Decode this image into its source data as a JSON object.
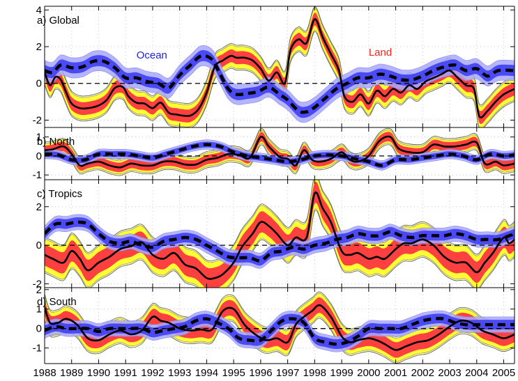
{
  "chart_data": {
    "type": "line",
    "title": "",
    "xlabel": "",
    "ylabel": "",
    "xlim": [
      1988,
      2005.4
    ],
    "x_ticks": [
      1988,
      1989,
      1990,
      1991,
      1992,
      1993,
      1994,
      1995,
      1996,
      1997,
      1998,
      1999,
      2000,
      2001,
      2002,
      2003,
      2004,
      2005
    ],
    "x_tick_labels": [
      "1988",
      "1989",
      "1990",
      "1991",
      "1992",
      "1993",
      "1994",
      "1995",
      "1996",
      "1997",
      "1998",
      "1999",
      "2000",
      "2001",
      "2002",
      "2003",
      "2004",
      "2005"
    ],
    "grid": "dotted",
    "colors": {
      "land_line": "#000000",
      "land_inner_band": "#ff4040",
      "land_outer_band": "#ffff33",
      "land_outermost_band": "#ffffb0",
      "ocean_line": "#000000",
      "ocean_inner_band": "#3f3ff5",
      "ocean_outer_band": "#a8a8ff",
      "ocean_label": "#2020e0",
      "land_label": "#ff2020"
    },
    "annotations": [
      {
        "text": "Ocean",
        "panel": "a",
        "color": "#2020e0",
        "x": 1991.4,
        "y": 1.35
      },
      {
        "text": "Land",
        "panel": "a",
        "color": "#ff2020",
        "x": 2000.0,
        "y": 1.5
      }
    ],
    "panels": [
      {
        "id": "a",
        "title": "a) Global",
        "ylim": [
          -2.4,
          4.2
        ],
        "y_ticks": [
          -2,
          0,
          2,
          4
        ],
        "y_tick_labels": [
          "-2",
          "0",
          "2",
          "4"
        ],
        "series": [
          {
            "name": "Land",
            "style": "solid",
            "band_inner": 0.35,
            "band_outer": 0.6,
            "x": [
              1988,
              1988.2,
              1988.4,
              1988.6,
              1988.8,
              1989,
              1989.3,
              1989.6,
              1990,
              1990.3,
              1990.6,
              1990.9,
              1991.1,
              1991.4,
              1991.7,
              1992,
              1992.3,
              1992.6,
              1992.9,
              1993.1,
              1993.4,
              1993.7,
              1994,
              1994.3,
              1994.6,
              1994.9,
              1995.1,
              1995.4,
              1995.7,
              1996,
              1996.3,
              1996.6,
              1996.9,
              1997.1,
              1997.4,
              1997.7,
              1998,
              1998.3,
              1998.6,
              1998.9,
              1999.1,
              1999.4,
              1999.7,
              2000,
              2000.3,
              2000.6,
              2000.9,
              2001.2,
              2001.5,
              2001.8,
              2002.1,
              2002.4,
              2002.7,
              2003,
              2003.3,
              2003.6,
              2003.9,
              2004.1,
              2004.4,
              2004.7,
              2005,
              2005.4
            ],
            "y": [
              0.6,
              -0.1,
              0.35,
              0.2,
              -0.5,
              -1.1,
              -1.35,
              -1.35,
              -1.2,
              -0.9,
              -0.25,
              -0.2,
              -0.7,
              -1.05,
              -1.1,
              -1.35,
              -1.05,
              -1.6,
              -1.7,
              -1.75,
              -1.75,
              -1.4,
              -0.5,
              0.9,
              1.25,
              1.5,
              1.4,
              1.4,
              1.25,
              0.8,
              0.15,
              0.6,
              0.0,
              1.8,
              2.4,
              2.2,
              3.5,
              2.5,
              1.6,
              0.7,
              -0.7,
              -1.0,
              -0.6,
              -1.1,
              -0.4,
              -0.7,
              -0.3,
              -0.5,
              -0.1,
              -0.3,
              0.1,
              0.3,
              0.5,
              0.7,
              0.3,
              -0.1,
              -0.3,
              -1.8,
              -1.5,
              -1.0,
              -0.6,
              -0.3
            ]
          },
          {
            "name": "Ocean",
            "style": "dashed",
            "band_inner": 0.3,
            "band_outer": 0.55,
            "x": [
              1988,
              1988.3,
              1988.6,
              1989,
              1989.4,
              1989.8,
              1990.2,
              1990.6,
              1991,
              1991.4,
              1991.8,
              1992.2,
              1992.6,
              1993,
              1993.4,
              1993.8,
              1994.2,
              1994.5,
              1994.8,
              1995.1,
              1995.5,
              1995.9,
              1996.3,
              1996.7,
              1997,
              1997.4,
              1997.7,
              1998,
              1998.4,
              1998.8,
              1999.2,
              1999.6,
              2000,
              2000.4,
              2000.8,
              2001.2,
              2001.6,
              2002,
              2002.4,
              2002.8,
              2003.2,
              2003.6,
              2004,
              2004.4,
              2004.8,
              2005.4
            ],
            "y": [
              0.7,
              0.6,
              1.0,
              0.85,
              0.9,
              1.2,
              1.2,
              0.85,
              0.3,
              0.3,
              0.1,
              0.0,
              -0.25,
              0.45,
              1.0,
              1.5,
              1.3,
              0.5,
              -0.3,
              -0.6,
              -0.55,
              -0.45,
              -0.2,
              -0.6,
              -0.9,
              -1.5,
              -1.55,
              -1.3,
              -0.8,
              -0.3,
              0.0,
              0.3,
              0.3,
              0.5,
              0.4,
              0.2,
              0.2,
              0.4,
              0.7,
              0.9,
              1.0,
              0.7,
              0.8,
              0.4,
              0.7,
              0.7
            ]
          }
        ]
      },
      {
        "id": "b",
        "title": "b) North",
        "ylim": [
          -1.25,
          1.5
        ],
        "y_ticks": [
          -1,
          0,
          1
        ],
        "y_tick_labels": [
          "-1",
          "0",
          "1"
        ],
        "series": [
          {
            "name": "Land",
            "style": "solid",
            "band_inner": 0.25,
            "band_outer": 0.35,
            "x": [
              1988,
              1988.3,
              1988.7,
              1989,
              1989.3,
              1989.6,
              1990,
              1990.4,
              1990.8,
              1991.2,
              1991.6,
              1992,
              1992.4,
              1992.8,
              1993.2,
              1993.6,
              1994,
              1994.4,
              1994.8,
              1995.2,
              1995.6,
              1996,
              1996.3,
              1996.7,
              1997,
              1997.3,
              1997.6,
              1997.9,
              1998.2,
              1998.6,
              1999,
              1999.3,
              1999.6,
              2000,
              2000.4,
              2000.8,
              2001.1,
              2001.5,
              2002,
              2002.4,
              2002.8,
              2003.2,
              2003.6,
              2004,
              2004.3,
              2004.7,
              2005,
              2005.4
            ],
            "y": [
              0.3,
              0.35,
              0.5,
              0.1,
              -0.5,
              -0.4,
              -0.3,
              -0.5,
              -0.6,
              -0.4,
              -0.5,
              -0.5,
              -0.3,
              -0.3,
              -0.45,
              -0.45,
              -0.2,
              -0.1,
              0.1,
              0.05,
              -0.1,
              1.0,
              0.5,
              -0.05,
              -0.15,
              -0.5,
              0.3,
              -0.2,
              -0.3,
              -0.15,
              0.2,
              -0.2,
              -0.3,
              0.0,
              0.8,
              1.0,
              0.4,
              0.2,
              0.2,
              0.6,
              0.5,
              0.5,
              0.6,
              0.7,
              -0.4,
              -0.3,
              -0.5,
              -0.4
            ]
          },
          {
            "name": "Ocean",
            "style": "dashed",
            "band_inner": 0.15,
            "band_outer": 0.25,
            "x": [
              1988,
              1988.5,
              1989,
              1989.5,
              1990,
              1990.5,
              1991,
              1991.5,
              1992,
              1992.5,
              1993,
              1993.5,
              1994,
              1994.5,
              1995,
              1995.5,
              1996,
              1996.5,
              1997,
              1997.5,
              1998,
              1998.5,
              1999,
              1999.5,
              2000,
              2000.5,
              2001,
              2001.5,
              2002,
              2002.5,
              2003,
              2003.5,
              2004,
              2004.5,
              2005,
              2005.4
            ],
            "y": [
              0.1,
              0.05,
              -0.2,
              -0.2,
              0.1,
              0.1,
              0.1,
              0.0,
              -0.1,
              0.1,
              0.3,
              0.5,
              0.6,
              0.5,
              0.2,
              0.0,
              -0.1,
              -0.2,
              -0.3,
              -0.2,
              0.0,
              0.05,
              0.0,
              -0.15,
              -0.3,
              -0.5,
              -0.2,
              -0.2,
              -0.1,
              0.0,
              0.1,
              0.0,
              -0.2,
              0.1,
              0.0,
              0.05
            ]
          }
        ]
      },
      {
        "id": "c",
        "title": "c) Tropics",
        "ylim": [
          -2.2,
          3.4
        ],
        "y_ticks": [
          -2,
          0,
          2
        ],
        "y_tick_labels": [
          "-2",
          "0",
          "2"
        ],
        "series": [
          {
            "name": "Land",
            "style": "solid",
            "band_inner": 0.55,
            "band_outer": 0.85,
            "x": [
              1988,
              1988.3,
              1988.7,
              1989,
              1989.3,
              1989.6,
              1990,
              1990.4,
              1990.8,
              1991.2,
              1991.6,
              1992,
              1992.4,
              1992.8,
              1993.2,
              1993.6,
              1994,
              1994.3,
              1994.6,
              1995,
              1995.3,
              1995.7,
              1996,
              1996.3,
              1996.6,
              1997,
              1997.3,
              1997.7,
              1998,
              1998.3,
              1998.6,
              1999,
              1999.3,
              1999.6,
              2000,
              2000.3,
              2000.6,
              2001,
              2001.3,
              2001.6,
              2002,
              2002.4,
              2002.8,
              2003.2,
              2003.6,
              2004,
              2004.3,
              2004.6,
              2005,
              2005.2,
              2005.4
            ],
            "y": [
              -0.5,
              -0.7,
              -0.9,
              -0.3,
              -0.7,
              -1.3,
              -0.9,
              -0.6,
              -0.2,
              -0.05,
              0.15,
              -0.5,
              -0.7,
              -0.4,
              -1.0,
              -1.2,
              -1.7,
              -1.7,
              -1.5,
              -0.9,
              -0.1,
              0.6,
              1.2,
              1.0,
              0.6,
              0.0,
              0.4,
              0.4,
              2.7,
              1.9,
              1.2,
              -0.3,
              -0.5,
              -0.4,
              -0.7,
              -0.6,
              -0.7,
              -0.2,
              0.1,
              0.1,
              0.3,
              0.0,
              -0.6,
              -0.9,
              -0.9,
              -1.4,
              -0.9,
              -0.4,
              0.4,
              0.1,
              0.3
            ]
          },
          {
            "name": "Ocean",
            "style": "dashed",
            "band_inner": 0.25,
            "band_outer": 0.4,
            "x": [
              1988,
              1988.4,
              1988.8,
              1989.2,
              1989.6,
              1990,
              1990.4,
              1990.8,
              1991.2,
              1991.6,
              1992,
              1992.4,
              1992.8,
              1993.2,
              1993.6,
              1994,
              1994.4,
              1994.8,
              1995.2,
              1995.6,
              1996,
              1996.4,
              1996.8,
              1997.2,
              1997.6,
              1998,
              1998.4,
              1998.8,
              1999.2,
              1999.6,
              2000,
              2000.4,
              2000.8,
              2001.2,
              2001.6,
              2002,
              2002.4,
              2002.8,
              2003.2,
              2003.6,
              2004,
              2004.4,
              2004.8,
              2005.4
            ],
            "y": [
              0.6,
              1.1,
              1.1,
              1.2,
              1.1,
              0.6,
              0.2,
              0.1,
              0.2,
              0.0,
              -0.1,
              0.2,
              0.3,
              0.4,
              0.3,
              0.0,
              -0.3,
              -0.6,
              -0.65,
              -0.65,
              -0.8,
              -0.4,
              -0.3,
              -0.1,
              -0.2,
              0.0,
              0.1,
              0.3,
              0.4,
              0.6,
              0.5,
              0.5,
              0.7,
              0.5,
              0.4,
              0.5,
              0.5,
              0.5,
              0.6,
              0.5,
              0.3,
              0.3,
              0.3,
              0.6
            ]
          }
        ]
      },
      {
        "id": "d",
        "title": "d) South",
        "ylim": [
          -1.8,
          2.1
        ],
        "y_ticks": [
          -1,
          0,
          1,
          2
        ],
        "y_tick_labels": [
          "-1",
          "0",
          "1",
          "2"
        ],
        "series": [
          {
            "name": "Land",
            "style": "solid",
            "band_inner": 0.4,
            "band_outer": 0.6,
            "x": [
              1988,
              1988.2,
              1988.5,
              1988.8,
              1989.2,
              1989.6,
              1990,
              1990.4,
              1990.8,
              1991.2,
              1991.6,
              1992,
              1992.3,
              1992.6,
              1993,
              1993.4,
              1993.8,
              1994.2,
              1994.6,
              1995,
              1995.4,
              1995.8,
              1996.2,
              1996.6,
              1997,
              1997.3,
              1997.6,
              1997.9,
              1998.2,
              1998.6,
              1999,
              1999.3,
              1999.6,
              2000,
              2000.3,
              2000.6,
              2001,
              2001.4,
              2001.8,
              2002.2,
              2002.6,
              2003,
              2003.4,
              2003.8,
              2004.2,
              2004.6,
              2005,
              2005.4
            ],
            "y": [
              1.1,
              0.3,
              0.3,
              0.5,
              0.2,
              -0.5,
              -0.6,
              -0.3,
              -0.1,
              -0.3,
              -0.1,
              0.6,
              0.4,
              0.3,
              0.0,
              -0.1,
              -0.05,
              -0.05,
              0.9,
              1.0,
              0.2,
              -0.3,
              -0.6,
              -0.5,
              -0.7,
              0.2,
              0.6,
              0.9,
              1.2,
              0.6,
              -0.4,
              -0.7,
              -0.6,
              -0.5,
              -0.6,
              -0.8,
              -1.1,
              -0.9,
              -0.7,
              -0.6,
              -0.3,
              0.1,
              0.4,
              0.3,
              -0.1,
              -0.3,
              -0.5,
              -0.3
            ]
          },
          {
            "name": "Ocean",
            "style": "dashed",
            "band_inner": 0.25,
            "band_outer": 0.4,
            "x": [
              1988,
              1988.4,
              1988.8,
              1989.2,
              1989.6,
              1990,
              1990.4,
              1990.8,
              1991.2,
              1991.6,
              1992,
              1992.4,
              1992.8,
              1993.2,
              1993.6,
              1994,
              1994.4,
              1994.8,
              1995.2,
              1995.6,
              1996,
              1996.4,
              1996.8,
              1997.2,
              1997.6,
              1998,
              1998.4,
              1998.8,
              1999.2,
              1999.6,
              2000,
              2000.4,
              2000.8,
              2001.2,
              2001.6,
              2002,
              2002.4,
              2002.8,
              2003.2,
              2003.6,
              2004,
              2004.4,
              2004.8,
              2005.4
            ],
            "y": [
              -0.1,
              0.1,
              0.0,
              0.0,
              0.0,
              -0.15,
              0.0,
              0.0,
              0.0,
              0.0,
              -0.2,
              -0.1,
              0.0,
              0.1,
              0.4,
              0.5,
              0.3,
              0.0,
              -0.5,
              -0.6,
              -0.6,
              -0.1,
              0.4,
              0.5,
              0.3,
              -0.5,
              -0.7,
              -0.8,
              -0.7,
              -0.4,
              0.0,
              0.0,
              0.0,
              0.0,
              0.2,
              0.4,
              0.5,
              0.5,
              0.3,
              0.2,
              0.2,
              0.2,
              0.2,
              0.2
            ]
          }
        ]
      }
    ]
  }
}
